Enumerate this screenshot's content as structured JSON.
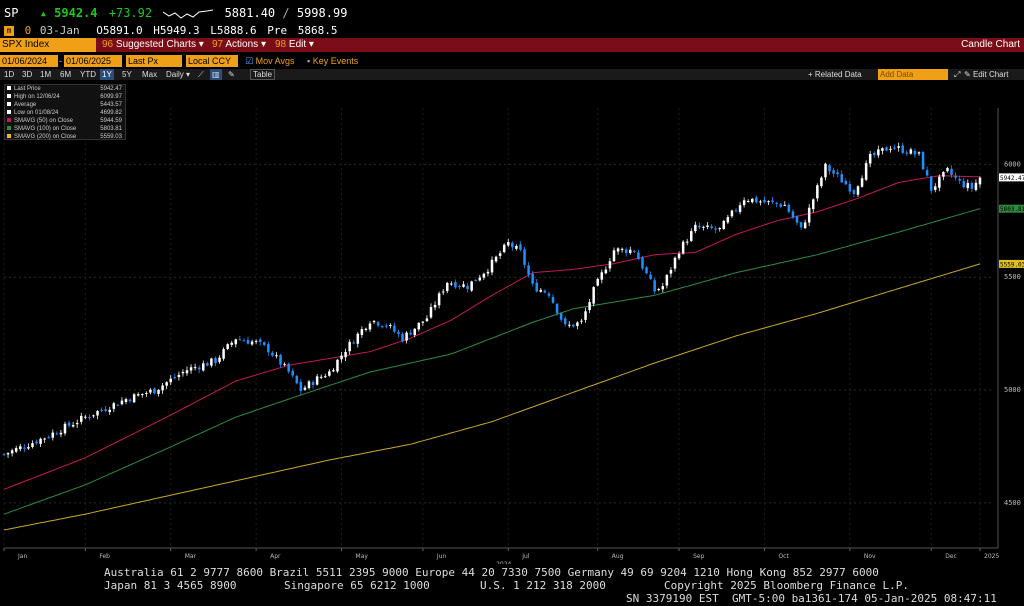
{
  "ticker": {
    "symbol": "SP",
    "last": "5942.4",
    "change": "+73.92",
    "range_low": "5881.40",
    "range_sep": "/",
    "range_high": "5998.99",
    "row2_code": "0",
    "row2_date": "03-Jan",
    "open": "O5891.0",
    "high": "H5949.3",
    "low": "L5888.6",
    "pre_label": "Pre",
    "pre_value": "5868.5"
  },
  "menubar": {
    "security": "SPX Index",
    "items": [
      "Suggested Charts",
      "Actions",
      "Edit"
    ],
    "chart_type": "Candle Chart"
  },
  "datebar": {
    "start_date": "01/06/2024",
    "end_date": "01/06/2025",
    "field": "Last Px",
    "currency": "Local CCY",
    "mov_avgs": "Mov Avgs",
    "key_events": "Key Events"
  },
  "periodbar": {
    "periods": [
      "1D",
      "3D",
      "1M",
      "6M",
      "YTD",
      "1Y",
      "5Y",
      "Max"
    ],
    "selected": "1Y",
    "frequency": "Daily",
    "table": "Table",
    "related_data": "Related Data",
    "add_data_placeholder": "Add Data",
    "edit_chart": "Edit Chart"
  },
  "legend": [
    {
      "label": "Last Price",
      "value": "5942.47",
      "color": "#ffffff"
    },
    {
      "label": "High on 12/06/24",
      "value": "6099.97",
      "color": "#ffffff"
    },
    {
      "label": "Average",
      "value": "5443.57",
      "color": "#ffffff"
    },
    {
      "label": "Low on 01/08/24",
      "value": "4699.82",
      "color": "#ffffff"
    },
    {
      "label": "SMAVG (50)  on Close",
      "value": "5944.59",
      "color": "#c2185b"
    },
    {
      "label": "SMAVG (100)  on Close",
      "value": "5803.81",
      "color": "#2e8b3e"
    },
    {
      "label": "SMAVG (200)  on Close",
      "value": "5559.03",
      "color": "#e0c020"
    }
  ],
  "colors": {
    "up": "#ffffff",
    "down": "#1e90ff",
    "sma50": "#c2185b",
    "sma100": "#2e8b3e",
    "sma200": "#c8a82a",
    "accent": "#f0a017",
    "menubar": "#7a0d16"
  },
  "chart_data": {
    "type": "candlestick",
    "y_ticks": [
      4500,
      5000,
      5500,
      6000
    ],
    "ylim": [
      4300,
      6250
    ],
    "x_ticks": [
      "Jan",
      "Feb",
      "Mar",
      "Apr",
      "May",
      "Jun",
      "Jul",
      "Aug",
      "Sep",
      "Oct",
      "Nov",
      "Dec",
      "2025"
    ],
    "year_label": "2024",
    "price_tags": [
      {
        "value": "5942.47",
        "y": 5942.47,
        "color": "#ffffff"
      },
      {
        "value": "5803.81",
        "y": 5803.81,
        "color": "#2e8b3e"
      },
      {
        "value": "5559.03",
        "y": 5559.03,
        "color": "#e0c020"
      }
    ],
    "price_anchors": [
      [
        0,
        4715
      ],
      [
        10,
        4790
      ],
      [
        20,
        4880
      ],
      [
        30,
        4960
      ],
      [
        37,
        5000
      ],
      [
        45,
        5090
      ],
      [
        52,
        5130
      ],
      [
        57,
        5230
      ],
      [
        62,
        5210
      ],
      [
        65,
        5180
      ],
      [
        70,
        5080
      ],
      [
        73,
        5000
      ],
      [
        77,
        5050
      ],
      [
        80,
        5080
      ],
      [
        84,
        5180
      ],
      [
        90,
        5310
      ],
      [
        94,
        5290
      ],
      [
        98,
        5230
      ],
      [
        104,
        5320
      ],
      [
        109,
        5480
      ],
      [
        114,
        5460
      ],
      [
        119,
        5540
      ],
      [
        124,
        5650
      ],
      [
        127,
        5610
      ],
      [
        130,
        5460
      ],
      [
        134,
        5430
      ],
      [
        138,
        5280
      ],
      [
        142,
        5300
      ],
      [
        145,
        5440
      ],
      [
        150,
        5620
      ],
      [
        155,
        5620
      ],
      [
        160,
        5440
      ],
      [
        162,
        5460
      ],
      [
        166,
        5620
      ],
      [
        170,
        5720
      ],
      [
        176,
        5710
      ],
      [
        182,
        5850
      ],
      [
        188,
        5830
      ],
      [
        192,
        5820
      ],
      [
        196,
        5710
      ],
      [
        198,
        5800
      ],
      [
        202,
        5990
      ],
      [
        206,
        5930
      ],
      [
        209,
        5880
      ],
      [
        213,
        6030
      ],
      [
        218,
        6080
      ],
      [
        222,
        6060
      ],
      [
        225,
        6040
      ],
      [
        228,
        5890
      ],
      [
        232,
        5970
      ],
      [
        235,
        5920
      ],
      [
        238,
        5895
      ],
      [
        240,
        5942
      ]
    ],
    "sma50_anchors": [
      [
        0,
        4560
      ],
      [
        20,
        4700
      ],
      [
        40,
        4880
      ],
      [
        57,
        5040
      ],
      [
        70,
        5110
      ],
      [
        80,
        5140
      ],
      [
        90,
        5170
      ],
      [
        100,
        5230
      ],
      [
        110,
        5310
      ],
      [
        120,
        5420
      ],
      [
        130,
        5520
      ],
      [
        140,
        5535
      ],
      [
        150,
        5560
      ],
      [
        160,
        5600
      ],
      [
        170,
        5610
      ],
      [
        180,
        5690
      ],
      [
        190,
        5750
      ],
      [
        200,
        5790
      ],
      [
        210,
        5850
      ],
      [
        220,
        5920
      ],
      [
        230,
        5950
      ],
      [
        240,
        5945
      ]
    ],
    "sma100_anchors": [
      [
        0,
        4450
      ],
      [
        20,
        4580
      ],
      [
        40,
        4740
      ],
      [
        57,
        4880
      ],
      [
        70,
        4960
      ],
      [
        90,
        5080
      ],
      [
        110,
        5160
      ],
      [
        130,
        5300
      ],
      [
        140,
        5360
      ],
      [
        160,
        5420
      ],
      [
        180,
        5520
      ],
      [
        200,
        5600
      ],
      [
        220,
        5700
      ],
      [
        240,
        5804
      ]
    ],
    "sma200_anchors": [
      [
        0,
        4380
      ],
      [
        20,
        4450
      ],
      [
        40,
        4530
      ],
      [
        60,
        4610
      ],
      [
        80,
        4690
      ],
      [
        100,
        4760
      ],
      [
        120,
        4860
      ],
      [
        140,
        4990
      ],
      [
        160,
        5120
      ],
      [
        180,
        5240
      ],
      [
        200,
        5340
      ],
      [
        220,
        5450
      ],
      [
        240,
        5559
      ]
    ]
  },
  "footer": {
    "line1": "Australia 61 2 9777 8600 Brazil 5511 2395 9000 Europe 44 20 7330 7500 Germany 49 69 9204 1210 Hong Kong 852 2977 6000",
    "line2a": "Japan 81 3 4565 8900",
    "line2b": "Singapore 65 6212 1000",
    "line2c": "U.S. 1 212 318 2000",
    "line2d": "Copyright 2025 Bloomberg Finance L.P.",
    "line3": "SN 3379190 EST  GMT-5:00 ba1361-174 05-Jan-2025 08:47:11"
  }
}
